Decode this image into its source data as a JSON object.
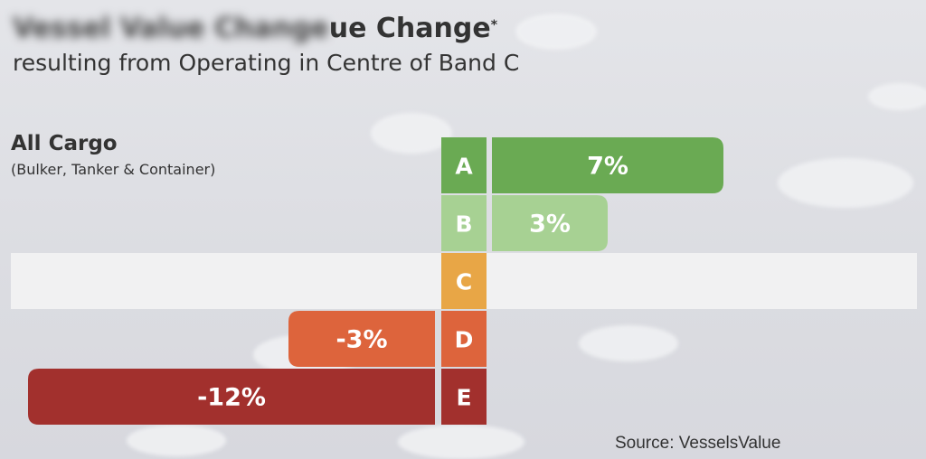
{
  "title_visible": "ue Change",
  "title_marker": "*",
  "subtitle": "resulting from Operating in Centre of Band C",
  "group": {
    "title": "All Cargo",
    "subtitle": "(Bulker, Tanker & Container)"
  },
  "source": "Source: VesselsValue",
  "chart_data": {
    "type": "bar",
    "orientation": "horizontal",
    "title": "",
    "xlabel": "",
    "ylabel": "",
    "categories": [
      "A",
      "B",
      "C",
      "D",
      "E"
    ],
    "values": [
      7,
      3,
      0,
      -3,
      -12
    ],
    "labels": [
      "7%",
      "3%",
      "",
      "-3%",
      "-12%"
    ],
    "unit": "%",
    "baseline_category": "C",
    "grid": false,
    "colors": {
      "A": "#6aaa53",
      "B": "#a7d193",
      "C": "#e8a646",
      "D": "#dd643c",
      "E": "#a2302d",
      "highlight_row": "#f1f1f2"
    }
  }
}
